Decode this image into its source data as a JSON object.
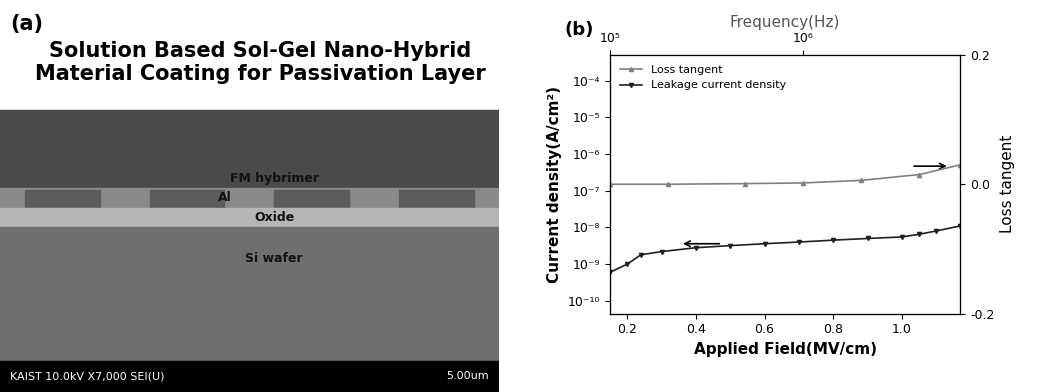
{
  "panel_a": {
    "label": "(a)",
    "title": "Solution Based Sol-Gel Nano-Hybrid Material Coating for Passivation Layer",
    "layers": [
      "FM hybrimer",
      "Al",
      "Oxide",
      "Si wafer"
    ],
    "footer": "KAIST 10.0kV X7,000 SEI(U)",
    "scale_bar": "5.00um"
  },
  "chart_data": {
    "type": "line",
    "label": "(b)",
    "xlabel": "Applied Field(MV/cm)",
    "ylabel": "Current density(A/cm²)",
    "y2label": "Loss tangent",
    "x2label": "Frequency(Hz)",
    "log": true,
    "legend": "upper left",
    "xlim": [
      0.15,
      1.17
    ],
    "xticks": [
      0.2,
      0.4,
      0.6,
      0.8,
      1.0
    ],
    "ylim": [
      4.5e-11,
      0.0005
    ],
    "yticks": [
      {
        "value": 1e-10,
        "label": "10⁻¹⁰"
      },
      {
        "value": 1e-09,
        "label": "10⁻⁹"
      },
      {
        "value": 1e-08,
        "label": "10⁻⁸"
      },
      {
        "value": 1e-07,
        "label": "10⁻⁷"
      },
      {
        "value": 1e-06,
        "label": "10⁻⁶"
      },
      {
        "value": 1e-05,
        "label": "10⁻⁵"
      },
      {
        "value": 0.0001,
        "label": "10⁻⁴"
      }
    ],
    "y2lim": [
      -0.2,
      0.2
    ],
    "y2ticks": [
      -0.2,
      0.0,
      0.2
    ],
    "x2lim": [
      100000,
      6500000
    ],
    "x2ticks": [
      {
        "value": 100000,
        "label": "10⁵"
      },
      {
        "value": 1000000,
        "label": "10⁶"
      }
    ],
    "series": [
      {
        "name": "Loss tangent",
        "color": "#808080",
        "marker": "^",
        "line_style": "solid",
        "axis": "y2",
        "x": [
          100000,
          200000,
          500000,
          1000000,
          2000000,
          4000000,
          6500000
        ],
        "values": [
          0.0,
          0.0,
          0.001,
          0.002,
          0.006,
          0.015,
          0.03
        ]
      },
      {
        "name": "Leakage current density",
        "color": "#202020",
        "marker": "v",
        "line_style": "solid",
        "x": [
          0.15,
          0.2,
          0.24,
          0.3,
          0.4,
          0.5,
          0.6,
          0.7,
          0.8,
          0.9,
          1.0,
          1.05,
          1.1,
          1.17
        ],
        "values": [
          6e-10,
          1e-09,
          1.8e-09,
          2.2e-09,
          2.8e-09,
          3.2e-09,
          3.6e-09,
          4e-09,
          4.5e-09,
          5e-09,
          5.5e-09,
          6.5e-09,
          8e-09,
          1.1e-08
        ]
      }
    ]
  }
}
